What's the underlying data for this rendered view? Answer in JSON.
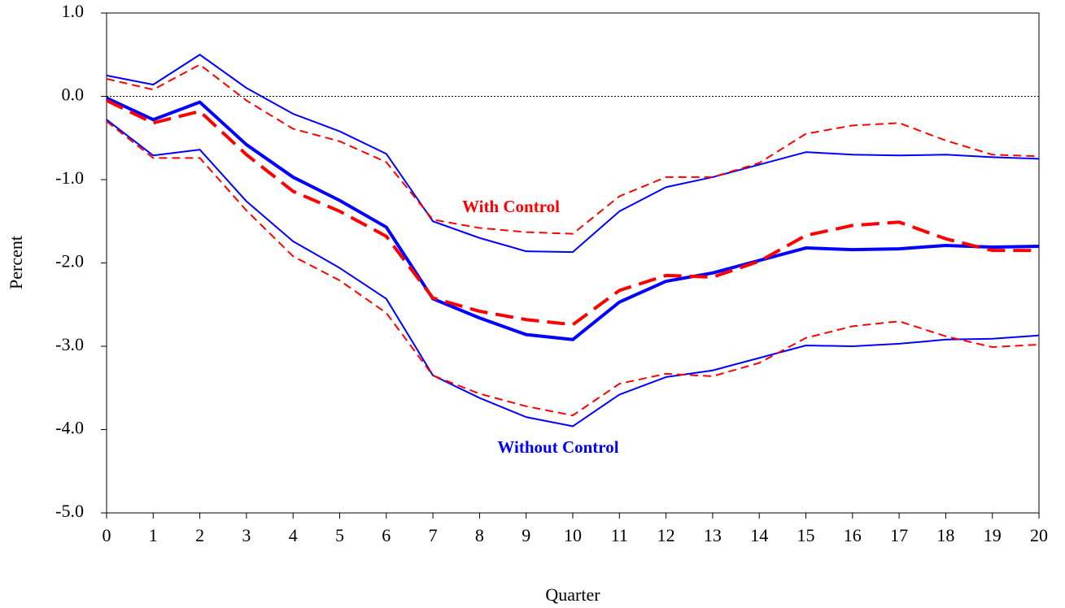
{
  "chart_data": {
    "type": "line",
    "x_label": "Quarter",
    "y_label": "Percent",
    "annotations": [
      "With Control",
      "Without Control"
    ],
    "annotation_colors": [
      "#ff0000",
      "#0000ff"
    ],
    "x": [
      0,
      1,
      2,
      3,
      4,
      5,
      6,
      7,
      8,
      9,
      10,
      11,
      12,
      13,
      14,
      15,
      16,
      17,
      18,
      19,
      20
    ],
    "xlim": [
      0,
      20
    ],
    "xticks": [
      0,
      1,
      2,
      3,
      4,
      5,
      6,
      7,
      8,
      9,
      10,
      11,
      12,
      13,
      14,
      15,
      16,
      17,
      18,
      19,
      20
    ],
    "ylim": [
      -5,
      1
    ],
    "yticks": [
      {
        "value": -5,
        "label": "-5.0"
      },
      {
        "value": -4,
        "label": "-4.0"
      },
      {
        "value": -3,
        "label": "-3.0"
      },
      {
        "value": -2,
        "label": "-2.0"
      },
      {
        "value": -1,
        "label": "-1.0"
      },
      {
        "value": 0,
        "label": "0.0"
      },
      {
        "value": 1,
        "label": "1.0"
      }
    ],
    "hline": 0,
    "series": [
      {
        "color": "#0000ff",
        "width": 2,
        "dash": "none",
        "values": [
          0.25,
          0.14,
          0.5,
          0.1,
          -0.21,
          -0.42,
          -0.69,
          -1.5,
          -1.7,
          -1.86,
          -1.87,
          -1.38,
          -1.09,
          -0.97,
          -0.82,
          -0.67,
          -0.7,
          -0.71,
          -0.7,
          -0.73,
          -0.75
        ]
      },
      {
        "color": "#0000ff",
        "width": 2,
        "dash": "none",
        "values": [
          -0.28,
          -0.71,
          -0.64,
          -1.26,
          -1.74,
          -2.06,
          -2.43,
          -3.35,
          -3.62,
          -3.85,
          -3.96,
          -3.58,
          -3.37,
          -3.29,
          -3.14,
          -2.99,
          -3.0,
          -2.97,
          -2.92,
          -2.91,
          -2.87
        ]
      },
      {
        "color": "#ff0000",
        "width": 2,
        "dash": "10 6",
        "values": [
          0.21,
          0.08,
          0.38,
          -0.05,
          -0.39,
          -0.54,
          -0.79,
          -1.48,
          -1.58,
          -1.63,
          -1.65,
          -1.2,
          -0.97,
          -0.97,
          -0.8,
          -0.45,
          -0.35,
          -0.32,
          -0.53,
          -0.7,
          -0.72
        ]
      },
      {
        "color": "#ff0000",
        "width": 2,
        "dash": "10 6",
        "values": [
          -0.3,
          -0.74,
          -0.74,
          -1.37,
          -1.92,
          -2.21,
          -2.6,
          -3.35,
          -3.57,
          -3.72,
          -3.83,
          -3.45,
          -3.33,
          -3.36,
          -3.2,
          -2.9,
          -2.76,
          -2.7,
          -2.88,
          -3.01,
          -2.98
        ]
      },
      {
        "color": "#0000ff",
        "width": 4,
        "dash": "none",
        "values": [
          -0.02,
          -0.28,
          -0.07,
          -0.58,
          -0.97,
          -1.25,
          -1.57,
          -2.43,
          -2.66,
          -2.86,
          -2.92,
          -2.47,
          -2.22,
          -2.12,
          -1.97,
          -1.82,
          -1.84,
          -1.83,
          -1.79,
          -1.81,
          -1.8
        ]
      },
      {
        "color": "#ff0000",
        "width": 4,
        "dash": "22 10",
        "values": [
          -0.05,
          -0.32,
          -0.18,
          -0.7,
          -1.14,
          -1.38,
          -1.68,
          -2.42,
          -2.58,
          -2.68,
          -2.74,
          -2.33,
          -2.15,
          -2.17,
          -1.98,
          -1.67,
          -1.55,
          -1.51,
          -1.71,
          -1.85,
          -1.85
        ]
      }
    ]
  }
}
